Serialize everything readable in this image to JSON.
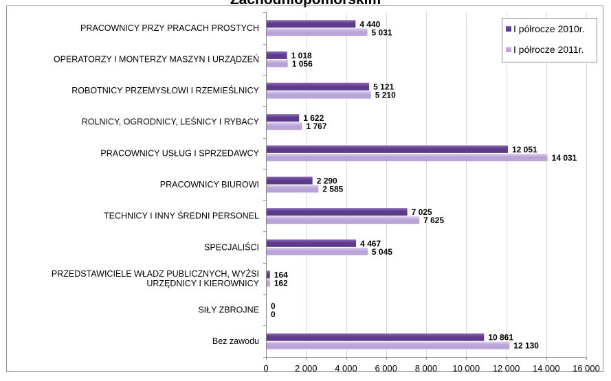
{
  "chart_data": {
    "type": "bar",
    "orientation": "horizontal",
    "title": "Zachodniopomorskim",
    "categories": [
      [
        "PRACOWNICY PRZY PRACACH PROSTYCH"
      ],
      [
        "OPERATORZY I MONTERZY MASZYN I URZĄDZEŃ"
      ],
      [
        "ROBOTNICY PRZEMYSŁOWI I RZEMIEŚLNICY"
      ],
      [
        "ROLNICY, OGRODNICY, LEŚNICY I RYBACY"
      ],
      [
        "PRACOWNICY USŁUG I SPRZEDAWCY"
      ],
      [
        "PRACOWNICY BIUROWI"
      ],
      [
        "TECHNICY I INNY ŚREDNI PERSONEL"
      ],
      [
        "SPECJALIŚCI"
      ],
      [
        "PRZEDSTAWICIELE WŁADZ PUBLICZNYCH, WYŻSI",
        "URZĘDNICY I KIEROWNICY"
      ],
      [
        "SIŁY ZBROJNE"
      ],
      [
        "Bez zawodu"
      ]
    ],
    "series": [
      {
        "name": "I półrocze 2010r.",
        "values": [
          4440,
          1018,
          5121,
          1622,
          12051,
          2290,
          7025,
          4467,
          164,
          0,
          10861
        ],
        "labels": [
          "4 440",
          "1 018",
          "5 121",
          "1 622",
          "12 051",
          "2 290",
          "7 025",
          "4 467",
          "164",
          "0",
          "10 861"
        ]
      },
      {
        "name": "I półrocze 2011r.",
        "values": [
          5031,
          1056,
          5210,
          1767,
          14031,
          2585,
          7625,
          5045,
          162,
          0,
          12130
        ],
        "labels": [
          "5 031",
          "1 056",
          "5 210",
          "1 767",
          "14 031",
          "2 585",
          "7 625",
          "5 045",
          "162",
          "0",
          "12 130"
        ]
      }
    ],
    "xlim": [
      0,
      16000
    ],
    "xticks": [
      0,
      2000,
      4000,
      6000,
      8000,
      10000,
      12000,
      14000,
      16000
    ],
    "xtick_labels": [
      "0",
      "2 000",
      "4 000",
      "6 000",
      "8 000",
      "10 000",
      "12 000",
      "14 000",
      "16 000"
    ],
    "grid": "vertical",
    "legend_position": "top-right",
    "colors": {
      "series_2010": "#5e3a8c",
      "series_2010_light": "#8a6ab5",
      "series_2011": "#b9a3d8",
      "series_2011_light": "#dcd0ee",
      "grid": "#d9d9d9",
      "axis": "#888888"
    }
  }
}
